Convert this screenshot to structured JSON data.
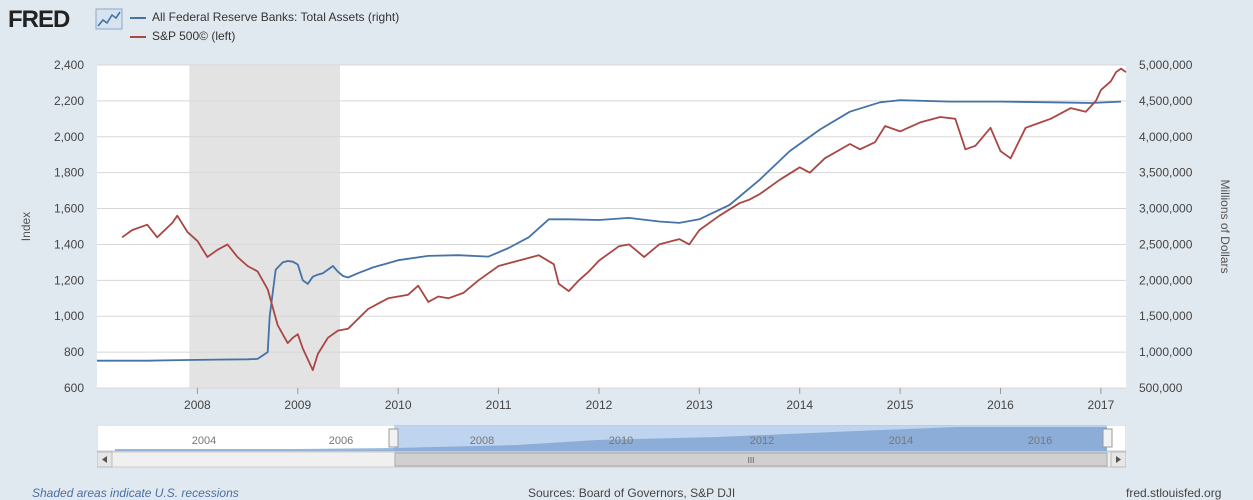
{
  "header": {
    "logo_text": "FRED",
    "logo_mark": "fred-chart-icon",
    "legend": [
      {
        "label": "All Federal Reserve Banks: Total Assets (right)",
        "color": "#4572a7"
      },
      {
        "label": "S&P 500© (left)",
        "color": "#aa4643"
      }
    ]
  },
  "chart_data": {
    "type": "line",
    "title": "",
    "x_ticks": [
      "2008",
      "2009",
      "2010",
      "2011",
      "2012",
      "2013",
      "2014",
      "2015",
      "2016",
      "2017"
    ],
    "x_range": [
      2007.0,
      2017.25
    ],
    "left_axis": {
      "label": "Index",
      "range": [
        600,
        2400
      ],
      "ticks": [
        "2,400",
        "2,200",
        "2,000",
        "1,800",
        "1,600",
        "1,400",
        "1,200",
        "1,000",
        "800",
        "600"
      ]
    },
    "right_axis": {
      "label": "Millions of Dollars",
      "range": [
        500000,
        5000000
      ],
      "ticks": [
        "5,000,000",
        "4,500,000",
        "4,000,000",
        "3,500,000",
        "3,000,000",
        "2,500,000",
        "2,000,000",
        "1,500,000",
        "1,000,000",
        "500,000"
      ]
    },
    "recession": {
      "start": 2007.92,
      "end": 2009.42,
      "color": "#e3e3e3"
    },
    "series": [
      {
        "name": "All Federal Reserve Banks: Total Assets (right)",
        "axis": "right",
        "color": "#4572a7",
        "x": [
          2007.0,
          2007.5,
          2007.9,
          2008.2,
          2008.5,
          2008.6,
          2008.7,
          2008.72,
          2008.78,
          2008.85,
          2008.9,
          2008.95,
          2009.0,
          2009.05,
          2009.1,
          2009.15,
          2009.2,
          2009.25,
          2009.3,
          2009.35,
          2009.4,
          2009.45,
          2009.5,
          2009.6,
          2009.75,
          2010.0,
          2010.3,
          2010.6,
          2010.9,
          2011.1,
          2011.3,
          2011.5,
          2011.7,
          2012.0,
          2012.3,
          2012.6,
          2012.8,
          2013.0,
          2013.3,
          2013.6,
          2013.9,
          2014.2,
          2014.5,
          2014.8,
          2015.0,
          2015.5,
          2016.0,
          2016.5,
          2016.9,
          2017.2
        ],
        "values": [
          880000,
          880000,
          890000,
          895000,
          900000,
          905000,
          1000000,
          1500000,
          2150000,
          2250000,
          2270000,
          2260000,
          2220000,
          2000000,
          1950000,
          2050000,
          2080000,
          2100000,
          2150000,
          2200000,
          2120000,
          2060000,
          2040000,
          2100000,
          2180000,
          2280000,
          2340000,
          2350000,
          2330000,
          2450000,
          2600000,
          2850000,
          2850000,
          2840000,
          2870000,
          2820000,
          2800000,
          2850000,
          3050000,
          3400000,
          3800000,
          4100000,
          4350000,
          4480000,
          4510000,
          4490000,
          4490000,
          4480000,
          4470000,
          4490000
        ]
      },
      {
        "name": "S&P 500© (left)",
        "axis": "left",
        "color": "#aa4643",
        "x": [
          2007.25,
          2007.35,
          2007.5,
          2007.6,
          2007.75,
          2007.8,
          2007.9,
          2008.0,
          2008.1,
          2008.2,
          2008.3,
          2008.4,
          2008.5,
          2008.6,
          2008.7,
          2008.75,
          2008.8,
          2008.85,
          2008.9,
          2008.95,
          2009.0,
          2009.05,
          2009.1,
          2009.15,
          2009.2,
          2009.3,
          2009.4,
          2009.5,
          2009.7,
          2009.9,
          2010.1,
          2010.2,
          2010.3,
          2010.4,
          2010.5,
          2010.65,
          2010.8,
          2011.0,
          2011.2,
          2011.4,
          2011.55,
          2011.6,
          2011.7,
          2011.8,
          2011.9,
          2012.0,
          2012.2,
          2012.3,
          2012.45,
          2012.6,
          2012.8,
          2012.9,
          2013.0,
          2013.2,
          2013.4,
          2013.5,
          2013.6,
          2013.8,
          2014.0,
          2014.1,
          2014.25,
          2014.5,
          2014.6,
          2014.75,
          2014.85,
          2015.0,
          2015.2,
          2015.4,
          2015.55,
          2015.65,
          2015.75,
          2015.9,
          2016.0,
          2016.1,
          2016.25,
          2016.4,
          2016.5,
          2016.7,
          2016.85,
          2016.95,
          2017.0,
          2017.1,
          2017.15,
          2017.2,
          2017.25
        ],
        "values": [
          1440,
          1480,
          1510,
          1440,
          1520,
          1560,
          1470,
          1420,
          1330,
          1370,
          1400,
          1330,
          1280,
          1250,
          1150,
          1050,
          950,
          900,
          850,
          880,
          900,
          820,
          760,
          700,
          790,
          880,
          920,
          930,
          1040,
          1100,
          1120,
          1170,
          1080,
          1110,
          1100,
          1130,
          1200,
          1280,
          1310,
          1340,
          1290,
          1180,
          1140,
          1200,
          1250,
          1310,
          1390,
          1400,
          1330,
          1400,
          1430,
          1400,
          1480,
          1560,
          1630,
          1650,
          1680,
          1760,
          1830,
          1800,
          1880,
          1960,
          1930,
          1970,
          2060,
          2030,
          2080,
          2110,
          2100,
          1930,
          1950,
          2050,
          1920,
          1880,
          2050,
          2080,
          2100,
          2160,
          2140,
          2200,
          2260,
          2310,
          2360,
          2380,
          2360
        ]
      }
    ]
  },
  "navigator": {
    "ticks": [
      "2004",
      "2006",
      "2008",
      "2010",
      "2012",
      "2014",
      "2016"
    ],
    "scroll_label": "III"
  },
  "footer": {
    "left": "Shaded areas indicate U.S. recessions",
    "middle": "Sources: Board of Governors, S&P DJI",
    "right": "fred.stlouisfed.org"
  }
}
